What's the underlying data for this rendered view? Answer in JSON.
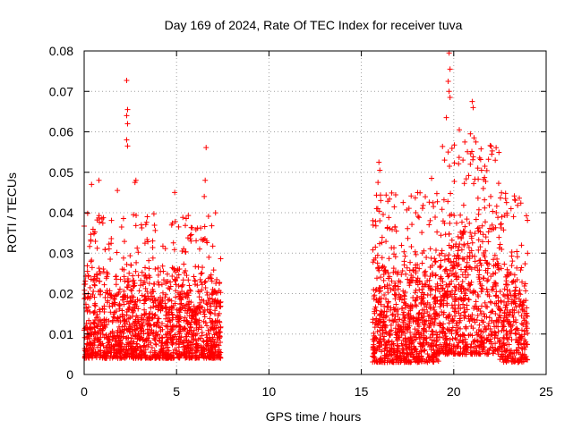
{
  "chart_data": {
    "type": "scatter",
    "title": "Day 169 of 2024, Rate Of TEC Index for receiver tuva",
    "xlabel": "GPS time / hours",
    "ylabel": "ROTI / TECUs",
    "xlim": [
      0,
      25
    ],
    "ylim": [
      0,
      0.08
    ],
    "xticks": [
      0,
      5,
      10,
      15,
      20,
      25
    ],
    "xtick_labels": [
      "0",
      "5",
      "10",
      "15",
      "20",
      "25"
    ],
    "yticks": [
      0,
      0.01,
      0.02,
      0.03,
      0.04,
      0.05,
      0.06,
      0.07,
      0.08
    ],
    "ytick_labels": [
      "0",
      "0.01",
      "0.02",
      "0.03",
      "0.04",
      "0.05",
      "0.06",
      "0.07",
      "0.08"
    ],
    "grid": true,
    "marker": "+",
    "marker_color": "#ff0000",
    "series": [
      {
        "name": "ROTI",
        "segments": [
          {
            "x_start": 0.0,
            "x_end": 7.4,
            "typical_min": 0.004,
            "typical_max": 0.03
          },
          {
            "x_start": 15.6,
            "x_end": 24.0,
            "typical_min": 0.003,
            "typical_max": 0.035
          }
        ],
        "points": [
          [
            2.3,
            0.0727
          ],
          [
            2.35,
            0.0655
          ],
          [
            2.3,
            0.064
          ],
          [
            2.35,
            0.062
          ],
          [
            2.3,
            0.058
          ],
          [
            2.35,
            0.0565
          ],
          [
            6.6,
            0.0561
          ],
          [
            6.55,
            0.048
          ],
          [
            2.8,
            0.048
          ],
          [
            2.75,
            0.0475
          ],
          [
            0.8,
            0.048
          ],
          [
            0.4,
            0.047
          ],
          [
            1.8,
            0.0455
          ],
          [
            4.9,
            0.045
          ],
          [
            6.5,
            0.044
          ],
          [
            15.95,
            0.0525
          ],
          [
            16.0,
            0.0505
          ],
          [
            15.9,
            0.0475
          ],
          [
            16.05,
            0.043
          ],
          [
            16.0,
            0.038
          ],
          [
            19.75,
            0.0795
          ],
          [
            19.8,
            0.0755
          ],
          [
            19.7,
            0.0725
          ],
          [
            19.75,
            0.07
          ],
          [
            19.8,
            0.0685
          ],
          [
            19.6,
            0.0635
          ],
          [
            21.0,
            0.0675
          ],
          [
            21.05,
            0.066
          ],
          [
            20.3,
            0.0605
          ],
          [
            20.9,
            0.0595
          ],
          [
            21.2,
            0.0575
          ],
          [
            21.1,
            0.0585
          ],
          [
            20.6,
            0.0575
          ],
          [
            19.7,
            0.055
          ],
          [
            20.5,
            0.053
          ],
          [
            20.9,
            0.052
          ],
          [
            21.4,
            0.0535
          ],
          [
            21.5,
            0.0505
          ],
          [
            18.8,
            0.0485
          ],
          [
            21.6,
            0.046
          ],
          [
            22.0,
            0.044
          ],
          [
            23.1,
            0.041
          ]
        ]
      }
    ]
  }
}
